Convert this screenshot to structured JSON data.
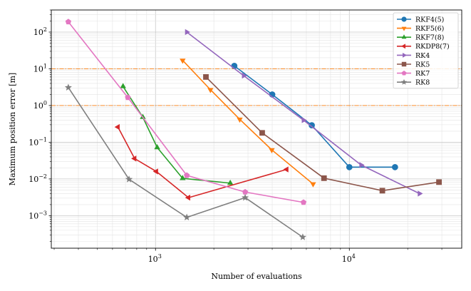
{
  "chart_data": {
    "type": "line",
    "xlabel": "Number of evaluations",
    "ylabel": "Maximum position error [m]",
    "xscale": "log",
    "yscale": "log",
    "xlim": [
      290,
      38000
    ],
    "ylim": [
      0.00013,
      400
    ],
    "x_ticks": [
      {
        "value": 1000,
        "base": "10",
        "exp": "3"
      },
      {
        "value": 10000,
        "base": "10",
        "exp": "4"
      }
    ],
    "y_ticks": [
      {
        "value": 0.001,
        "base": "10",
        "exp": "−3"
      },
      {
        "value": 0.01,
        "base": "10",
        "exp": "−2"
      },
      {
        "value": 0.1,
        "base": "10",
        "exp": "−1"
      },
      {
        "value": 1,
        "base": "10",
        "exp": "0"
      },
      {
        "value": 10,
        "base": "10",
        "exp": "1"
      },
      {
        "value": 100,
        "base": "10",
        "exp": "2"
      }
    ],
    "grid": true,
    "legend_position": "top-right",
    "reference_lines": [
      {
        "y": 10,
        "color": "#ff7f0e",
        "style": "dashdot"
      },
      {
        "y": 1,
        "color": "#ff7f0e",
        "style": "dashdot"
      }
    ],
    "series": [
      {
        "name": "RKF4(5)",
        "color": "#1f77b4",
        "marker": "circle",
        "x": [
          2550,
          4000,
          6400,
          10000,
          17200
        ],
        "y": [
          12,
          2.0,
          0.29,
          0.021,
          0.021
        ]
      },
      {
        "name": "RKF5(6)",
        "color": "#ff7f0e",
        "marker": "triangle-down",
        "x": [
          1380,
          1920,
          2720,
          3980,
          6500
        ],
        "y": [
          17,
          2.7,
          0.42,
          0.062,
          0.0073
        ]
      },
      {
        "name": "RKF7(8)",
        "color": "#2ca02c",
        "marker": "triangle-up",
        "x": [
          680,
          860,
          1020,
          1380,
          2430
        ],
        "y": [
          3.3,
          0.48,
          0.072,
          0.0104,
          0.0077
        ]
      },
      {
        "name": "RKDP8(7)",
        "color": "#d62728",
        "marker": "triangle-left",
        "x": [
          640,
          780,
          1010,
          1480,
          4750
        ],
        "y": [
          0.26,
          0.036,
          0.016,
          0.0031,
          0.0182
        ]
      },
      {
        "name": "RK4",
        "color": "#9467bd",
        "marker": "triangle-right",
        "x": [
          1450,
          2850,
          5800,
          11500,
          23000
        ],
        "y": [
          100,
          6.5,
          0.4,
          0.024,
          0.004
        ]
      },
      {
        "name": "RK5",
        "color": "#8c564b",
        "marker": "square",
        "x": [
          1820,
          3550,
          7400,
          14800,
          29000
        ],
        "y": [
          6.0,
          0.18,
          0.0105,
          0.0048,
          0.0082
        ]
      },
      {
        "name": "RK7",
        "color": "#e377c2",
        "marker": "pentagon",
        "x": [
          355,
          720,
          1450,
          2900,
          5800
        ],
        "y": [
          190,
          1.65,
          0.0125,
          0.0044,
          0.0023
        ]
      },
      {
        "name": "RK8",
        "color": "#7f7f7f",
        "marker": "star",
        "x": [
          355,
          730,
          1450,
          2900,
          5750
        ],
        "y": [
          3.1,
          0.0098,
          0.0009,
          0.0031,
          0.00026
        ]
      }
    ]
  }
}
